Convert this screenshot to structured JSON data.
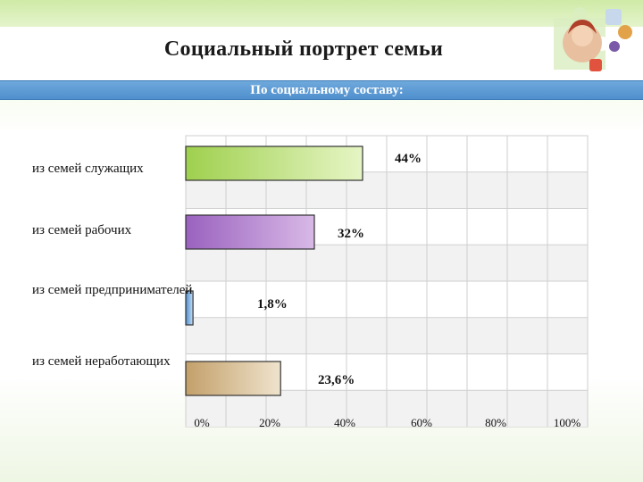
{
  "header": {
    "title": "Социальный портрет семьи",
    "subtitle": "По социальному составу:"
  },
  "colors": {
    "series": [
      "#a5d85a",
      "#9b66c0",
      "#5b9bd5",
      "#c8a670"
    ],
    "subtitle_bar": "#5b9bd5"
  },
  "chart_data": {
    "type": "bar",
    "orientation": "horizontal",
    "categories": [
      "из семей служащих",
      "из семей рабочих",
      "из семей предпринимателей",
      "из семей неработающих"
    ],
    "values": [
      44,
      32,
      1.8,
      23.6
    ],
    "value_labels": [
      "44%",
      "32%",
      "1,8%",
      "23,6%"
    ],
    "xticks": [
      0,
      20,
      40,
      60,
      80,
      100
    ],
    "xtick_labels": [
      "0%",
      "20%",
      "40%",
      "60%",
      "80%",
      "100%"
    ],
    "xlim": [
      0,
      100
    ],
    "grid": true,
    "legend": "none",
    "title": "",
    "xlabel": "",
    "ylabel": ""
  }
}
